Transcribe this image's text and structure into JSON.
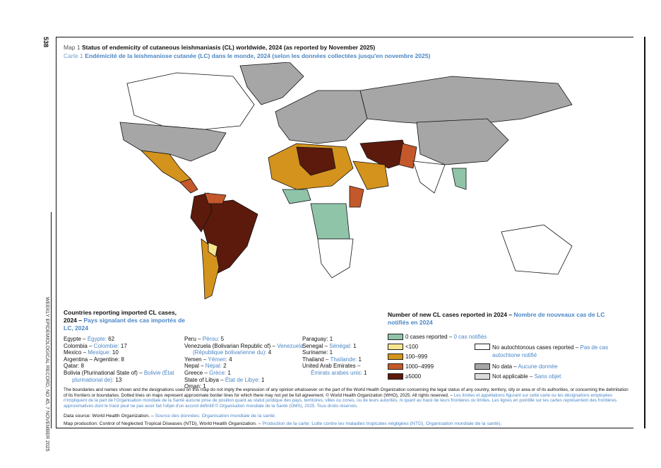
{
  "page": {
    "number": "538",
    "running_head": "WEEKLY EPIDEMIOLOGICAL RECORD, NO 45, 7 NOVEMBER 2025"
  },
  "title": {
    "en_prefix": "Map 1",
    "en": "Status of endemicity of cutaneous leishmaniasis (CL) worldwide, 2024 (as reported by November 2025)",
    "fr_prefix": "Carte 1",
    "fr": "Endémicité de la leishmaniose cutanée (LC) dans le monde, 2024 (selon les données collectées jusqu'en novembre 2025)"
  },
  "colors": {
    "zero": "#8fc4a9",
    "lt100": "#f6e58f",
    "c100_999": "#d4931d",
    "c1000_4999": "#c4582a",
    "ge5000": "#5c1a0c",
    "no_autochthonous": "#ffffff",
    "no_data": "#a6a6a6",
    "not_applicable": "#dcdcdc",
    "french": "#4a86c5"
  },
  "imported": {
    "heading_en": "Countries reporting imported CL cases, 2024 –",
    "heading_fr": "Pays signalant des cas importés de LC, 2024",
    "columns": [
      [
        {
          "en": "Egypte – ",
          "fr": "Égypte:",
          "v": " 62"
        },
        {
          "en": "Colombia – ",
          "fr": "Colombie:",
          "v": " 17"
        },
        {
          "en": "Mexico – ",
          "fr": "Mexique:",
          "v": " 10"
        },
        {
          "en": "Argentina – Argentine: 8",
          "fr": "",
          "v": ""
        },
        {
          "en": "Qatar: 8",
          "fr": "",
          "v": ""
        },
        {
          "en": "Bolivia (Plurinational State of) – ",
          "fr": "Bolivie (État",
          "v": ""
        },
        {
          "en": "",
          "fr": "plurinational de):",
          "v": " 13",
          "indent": true
        }
      ],
      [
        {
          "en": "Peru – ",
          "fr": "Pérou:",
          "v": " 5"
        },
        {
          "en": "Venezuela (Bolivarian Republic of) – ",
          "fr": "Venezuela",
          "v": ""
        },
        {
          "en": "",
          "fr": "(République bolivarienne du):",
          "v": " 4",
          "indent": true
        },
        {
          "en": "Yemen – ",
          "fr": "Yémen:",
          "v": " 4"
        },
        {
          "en": "Nepal – ",
          "fr": "Népal:",
          "v": " 2"
        },
        {
          "en": "Greece – ",
          "fr": "Grèce:",
          "v": " 1"
        },
        {
          "en": "State of Libya – ",
          "fr": "État de Libye:",
          "v": " 1"
        },
        {
          "en": "Oman: 1",
          "fr": "",
          "v": ""
        }
      ],
      [
        {
          "en": "Paraguay: 1",
          "fr": "",
          "v": ""
        },
        {
          "en": "Senegal – ",
          "fr": "Sénégal:",
          "v": " 1"
        },
        {
          "en": "Suriname: 1",
          "fr": "",
          "v": ""
        },
        {
          "en": "Thailand – ",
          "fr": "Thaïlande:",
          "v": " 1"
        },
        {
          "en": "United Arab Emirates –",
          "fr": "",
          "v": ""
        },
        {
          "en": "",
          "fr": "Émirats arabes unis:",
          "v": " 1",
          "indent": true
        }
      ]
    ]
  },
  "legend": {
    "heading_en": "Number of new CL cases reported in 2024 –",
    "heading_fr": "Nombre de nouveaux cas de LC notifiés en 2024",
    "items": [
      {
        "en": "0 cases reported  – ",
        "fr": "0 cas notifiés",
        "color": "#8fc4a9"
      },
      {
        "en": "<100",
        "fr": "",
        "color": "#f6e58f"
      },
      {
        "en": "100–999",
        "fr": "",
        "color": "#d4931d"
      },
      {
        "en": "1000–4999",
        "fr": "",
        "color": "#c4582a"
      },
      {
        "en": "≥5000",
        "fr": "",
        "color": "#5c1a0c"
      },
      {
        "en": "No autochtonous cases reported – ",
        "fr": "Pas de cas autochtone notifié",
        "color": "#ffffff"
      },
      {
        "en": "No data – ",
        "fr": "Aucune donnée",
        "color": "#a6a6a6"
      },
      {
        "en": "Not applicable – ",
        "fr": "Sans objet",
        "color": "#dcdcdc"
      }
    ]
  },
  "footer": {
    "disclaimer_en": "The boundaries and names shown and the designations used on this map do not imply the expression of any opinion whatsoever on the part of the World Health Organization concerning the legal status of any country, territory, city or area or of its authorities, or concerning the delimitation of its frontiers or boundaries. Dotted lines on maps represent approximate border lines for which there may not yet be full agreement. © World Health Organization (WHO), 2025. All rights reserved. – ",
    "disclaimer_fr": "Les limites et appellations figurant sur cette carte ou les désignations employées n'impliquent de la part de l'Organisation mondiale de la Santé aucune prise de position quant au statut juridique des pays, territoires, villes ou zones, ou de leurs autorités, ni quant au tracé de leurs frontières ou limites. Les lignes en pointillé sur les cartes représentent des frontières approximatives dont le tracé peut ne pas avoir fait l'objet d'un accord définitif.© Organisation mondiale de la Santé (OMS), 2025. Tous droits réservés.",
    "source_en": "Data source: World Health Organization. – ",
    "source_fr": "Source des données: Organisation mondiale de la santé.",
    "production_en": "Map production: Control of Neglected Tropical Diseases (NTD), World Health Organization. – ",
    "production_fr": "Production de la carte: Lutte contre les maladies tropicales négligées (NTD), Organisation mondiale de la santé)."
  }
}
